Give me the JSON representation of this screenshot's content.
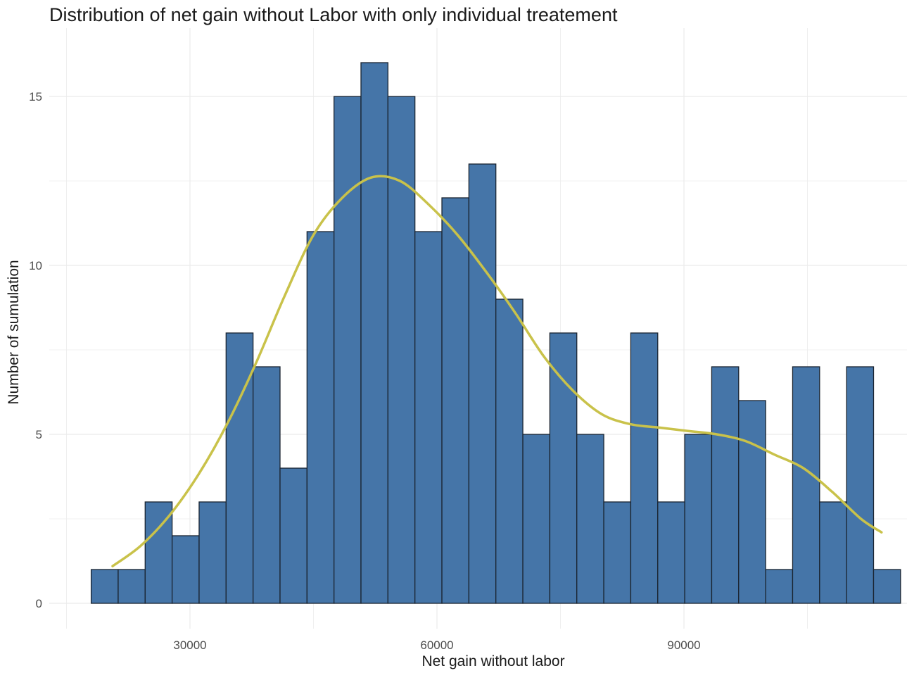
{
  "chart_data": {
    "type": "bar",
    "subtype": "histogram-with-density",
    "title": "Distribution of net gain without Labor with only individual treatement",
    "xlabel": "Net gain without labor",
    "ylabel": "Number of sumulation",
    "xlim": [
      16000,
      114300
    ],
    "ylim": [
      0,
      16
    ],
    "bin_width": 3277,
    "x_ticks": [
      30000,
      60000,
      90000
    ],
    "x_tick_labels": [
      "30000",
      "60000",
      "90000"
    ],
    "y_ticks": [
      0,
      5,
      10,
      15
    ],
    "y_tick_labels": [
      "0",
      "5",
      "10",
      "15"
    ],
    "bin_starts": [
      18000,
      21277,
      24554,
      27831,
      31108,
      34385,
      37662,
      40939,
      44216,
      47493,
      50770,
      54047,
      57324,
      60601,
      63878,
      67155,
      70432,
      73709,
      76986,
      80263,
      83540,
      86817,
      90094,
      93371,
      96648,
      99925,
      103202,
      106479,
      109756,
      113033
    ],
    "values": [
      1,
      1,
      3,
      2,
      3,
      8,
      7,
      4,
      11,
      15,
      16,
      15,
      11,
      12,
      13,
      9,
      5,
      8,
      5,
      3,
      8,
      3,
      5,
      7,
      6,
      1,
      7,
      3,
      7,
      1
    ],
    "density_curve": {
      "x": [
        20600,
        24000,
        27500,
        31000,
        34500,
        38000,
        41500,
        45000,
        48500,
        52000,
        55500,
        59000,
        62500,
        66000,
        69500,
        73000,
        76500,
        80000,
        83500,
        87000,
        90500,
        94000,
        97500,
        101000,
        104500,
        108000,
        111500,
        114000
      ],
      "y": [
        1.1,
        1.7,
        2.6,
        3.8,
        5.3,
        7.1,
        9.1,
        10.9,
        12.0,
        12.6,
        12.5,
        11.8,
        10.9,
        9.8,
        8.6,
        7.3,
        6.3,
        5.6,
        5.3,
        5.2,
        5.1,
        5.0,
        4.8,
        4.4,
        4.0,
        3.3,
        2.5,
        2.1
      ]
    },
    "grid": true,
    "legend": "none",
    "colors": {
      "bar_fill": "#4575a8",
      "bar_stroke": "#1a2430",
      "density_line": "#c9c24a",
      "grid": "#ebebeb"
    }
  }
}
